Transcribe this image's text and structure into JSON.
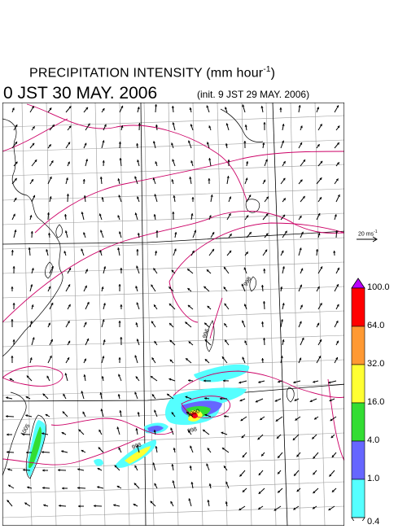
{
  "title": {
    "text": "PRECIPITATION INTENSITY (mm hour",
    "unit_exponent": "-1",
    "close": ")"
  },
  "valid_time": "0 JST 30 MAY. 2006",
  "init_time": "(init. 9 JST 29 MAY. 2006)",
  "wind_scale": {
    "value": "20 ms",
    "exponent": "-1"
  },
  "colorbar": {
    "labels": [
      "100.0",
      "64.0",
      "32.0",
      "16.0",
      "4.0",
      "1.0",
      "0.4"
    ],
    "colors": [
      "#ff0000",
      "#ff9933",
      "#ffff33",
      "#33dd33",
      "#6666ff",
      "#55ffff"
    ],
    "top_arrow_color": "#bb00ff",
    "bottom_arrow_color": "#ffffff"
  },
  "map_colors": {
    "isobar": "#cc0066",
    "coast": "#000000",
    "grid": "#999999",
    "arrows": "#000000"
  },
  "isobar_labels": [
    "998",
    "996",
    "1000",
    "998",
    "1005",
    "998"
  ]
}
